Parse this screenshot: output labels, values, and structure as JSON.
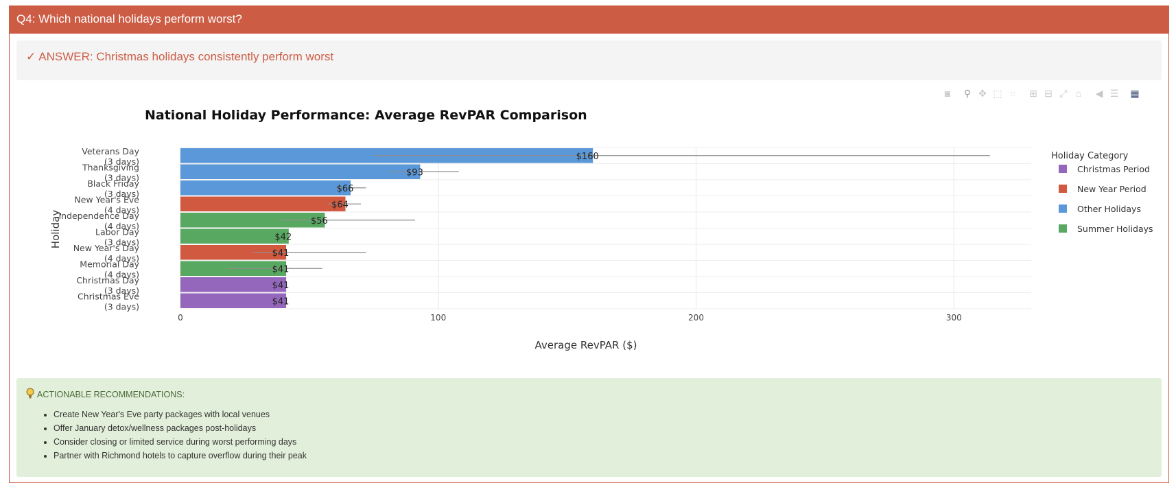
{
  "header": {
    "title": "Q4: Which national holidays perform worst?"
  },
  "answer": {
    "check": "✓",
    "text": "ANSWER: Christmas holidays consistently perform worst"
  },
  "modebar": {
    "icons": [
      "camera-icon",
      "zoom-icon",
      "pan-icon",
      "box-select-icon",
      "lasso-icon",
      "zoom-in-icon",
      "zoom-out-icon",
      "autoscale-icon",
      "reset-axes-icon",
      "spike-lines-icon",
      "compare-hover-icon",
      "plotly-logo-icon"
    ]
  },
  "chart_data": {
    "type": "bar",
    "orientation": "horizontal",
    "title": "National Holiday Performance: Average RevPAR Comparison",
    "xlabel": "Average RevPAR ($)",
    "ylabel": "Holiday",
    "xlim": [
      0,
      330
    ],
    "xticks": [
      0,
      100,
      200,
      300
    ],
    "grid": true,
    "legend_title": "Holiday Category",
    "legend_position": "right",
    "categories_legend": [
      {
        "name": "Christmas Period",
        "color": "#9467bd"
      },
      {
        "name": "New Year Period",
        "color": "#d1593f"
      },
      {
        "name": "Other Holidays",
        "color": "#5b98d9"
      },
      {
        "name": "Summer Holidays",
        "color": "#59a862"
      }
    ],
    "bars": [
      {
        "label": "Veterans Day",
        "sublabel": "(3 days)",
        "value": 160,
        "text": "$160",
        "category": "Other Holidays",
        "err_low": 75,
        "err_high": 314
      },
      {
        "label": "Thanksgiving",
        "sublabel": "(3 days)",
        "value": 93,
        "text": "$93",
        "category": "Other Holidays",
        "err_low": 81,
        "err_high": 108
      },
      {
        "label": "Black Friday",
        "sublabel": "(3 days)",
        "value": 66,
        "text": "$66",
        "category": "Other Holidays",
        "err_low": 60,
        "err_high": 72
      },
      {
        "label": "New Year's Eve",
        "sublabel": "(4 days)",
        "value": 64,
        "text": "$64",
        "category": "New Year Period",
        "err_low": 57,
        "err_high": 70
      },
      {
        "label": "Independence Day",
        "sublabel": "(4 days)",
        "value": 56,
        "text": "$56",
        "category": "Summer Holidays",
        "err_low": 38,
        "err_high": 91
      },
      {
        "label": "Labor Day",
        "sublabel": "(3 days)",
        "value": 42,
        "text": "$42",
        "category": "Summer Holidays",
        "err_low": 42,
        "err_high": 42
      },
      {
        "label": "New Year's Day",
        "sublabel": "(4 days)",
        "value": 41,
        "text": "$41",
        "category": "New Year Period",
        "err_low": 28,
        "err_high": 72
      },
      {
        "label": "Memorial Day",
        "sublabel": "(4 days)",
        "value": 41,
        "text": "$41",
        "category": "Summer Holidays",
        "err_low": 18,
        "err_high": 55
      },
      {
        "label": "Christmas Day",
        "sublabel": "(3 days)",
        "value": 41,
        "text": "$41",
        "category": "Christmas Period",
        "err_low": 41,
        "err_high": 41
      },
      {
        "label": "Christmas Eve",
        "sublabel": "(3 days)",
        "value": 41,
        "text": "$41",
        "category": "Christmas Period",
        "err_low": 41,
        "err_high": 41
      }
    ]
  },
  "recommendations": {
    "title": "ACTIONABLE RECOMMENDATIONS:",
    "items": [
      "Create New Year's Eve party packages with local venues",
      "Offer January detox/wellness packages post-holidays",
      "Consider closing or limited service during worst performing days",
      "Partner with Richmond hotels to capture overflow during their peak"
    ]
  }
}
